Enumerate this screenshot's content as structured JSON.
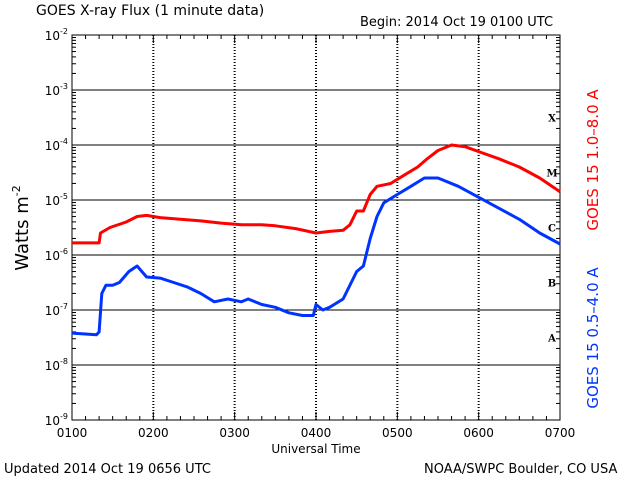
{
  "header": {
    "title": "GOES X-ray Flux (1 minute data)",
    "begin": "Begin: 2014 Oct 19 0100 UTC"
  },
  "footer": {
    "updated": "Updated 2014 Oct 19 0656 UTC",
    "credit": "NOAA/SWPC Boulder, CO USA"
  },
  "colors": {
    "long": "#ff0000",
    "short": "#0033ff"
  },
  "chart_data": {
    "type": "line",
    "title": "GOES X-ray Flux (1 minute data)",
    "xlabel": "Universal Time",
    "ylabel": "Watts m",
    "ylabel_sup": "-2",
    "yscale": "log",
    "xlim": [
      0,
      360
    ],
    "ylim": [
      -9,
      -2
    ],
    "grid": true,
    "x_ticks": [
      "0100",
      "0200",
      "0300",
      "0400",
      "0500",
      "0600",
      "0700"
    ],
    "y_ticks": [
      {
        "exp": -2,
        "base": "10",
        "sup": "-2"
      },
      {
        "exp": -3,
        "base": "10",
        "sup": "-3"
      },
      {
        "exp": -4,
        "base": "10",
        "sup": "-4"
      },
      {
        "exp": -5,
        "base": "10",
        "sup": "-5"
      },
      {
        "exp": -6,
        "base": "10",
        "sup": "-6"
      },
      {
        "exp": -7,
        "base": "10",
        "sup": "-7"
      },
      {
        "exp": -8,
        "base": "10",
        "sup": "-8"
      },
      {
        "exp": -9,
        "base": "10",
        "sup": "-9"
      }
    ],
    "flare_classes": [
      {
        "label": "X",
        "exp": -3.5
      },
      {
        "label": "M",
        "exp": -4.5
      },
      {
        "label": "C",
        "exp": -5.5
      },
      {
        "label": "B",
        "exp": -6.5
      },
      {
        "label": "A",
        "exp": -7.5
      }
    ],
    "series": [
      {
        "name": "GOES 15 1.0–8.0 A",
        "color": "#ff0000",
        "points": [
          [
            0,
            -5.78
          ],
          [
            20,
            -5.78
          ],
          [
            21,
            -5.6
          ],
          [
            28,
            -5.5
          ],
          [
            40,
            -5.4
          ],
          [
            48,
            -5.3
          ],
          [
            55,
            -5.28
          ],
          [
            65,
            -5.32
          ],
          [
            80,
            -5.35
          ],
          [
            95,
            -5.38
          ],
          [
            110,
            -5.42
          ],
          [
            125,
            -5.45
          ],
          [
            140,
            -5.45
          ],
          [
            150,
            -5.47
          ],
          [
            165,
            -5.52
          ],
          [
            180,
            -5.6
          ],
          [
            190,
            -5.57
          ],
          [
            200,
            -5.55
          ],
          [
            205,
            -5.45
          ],
          [
            210,
            -5.2
          ],
          [
            215,
            -5.2
          ],
          [
            220,
            -4.9
          ],
          [
            225,
            -4.75
          ],
          [
            235,
            -4.7
          ],
          [
            245,
            -4.55
          ],
          [
            255,
            -4.4
          ],
          [
            262,
            -4.25
          ],
          [
            270,
            -4.1
          ],
          [
            280,
            -4.0
          ],
          [
            290,
            -4.03
          ],
          [
            300,
            -4.12
          ],
          [
            315,
            -4.25
          ],
          [
            330,
            -4.4
          ],
          [
            345,
            -4.6
          ],
          [
            360,
            -4.85
          ]
        ]
      },
      {
        "name": "GOES 15 0.5–4.0 A",
        "color": "#0033ff",
        "points": [
          [
            0,
            -7.42
          ],
          [
            18,
            -7.45
          ],
          [
            20,
            -7.4
          ],
          [
            22,
            -6.7
          ],
          [
            25,
            -6.55
          ],
          [
            30,
            -6.55
          ],
          [
            35,
            -6.5
          ],
          [
            42,
            -6.3
          ],
          [
            48,
            -6.2
          ],
          [
            55,
            -6.4
          ],
          [
            65,
            -6.42
          ],
          [
            75,
            -6.5
          ],
          [
            85,
            -6.58
          ],
          [
            95,
            -6.7
          ],
          [
            105,
            -6.85
          ],
          [
            115,
            -6.8
          ],
          [
            125,
            -6.85
          ],
          [
            130,
            -6.8
          ],
          [
            140,
            -6.9
          ],
          [
            150,
            -6.95
          ],
          [
            160,
            -7.05
          ],
          [
            170,
            -7.1
          ],
          [
            178,
            -7.1
          ],
          [
            180,
            -6.9
          ],
          [
            185,
            -7.0
          ],
          [
            190,
            -6.95
          ],
          [
            200,
            -6.8
          ],
          [
            210,
            -6.3
          ],
          [
            215,
            -6.2
          ],
          [
            220,
            -5.7
          ],
          [
            225,
            -5.3
          ],
          [
            230,
            -5.05
          ],
          [
            240,
            -4.9
          ],
          [
            250,
            -4.75
          ],
          [
            260,
            -4.6
          ],
          [
            270,
            -4.6
          ],
          [
            285,
            -4.75
          ],
          [
            300,
            -4.95
          ],
          [
            315,
            -5.15
          ],
          [
            330,
            -5.35
          ],
          [
            345,
            -5.6
          ],
          [
            360,
            -5.8
          ]
        ]
      }
    ]
  }
}
